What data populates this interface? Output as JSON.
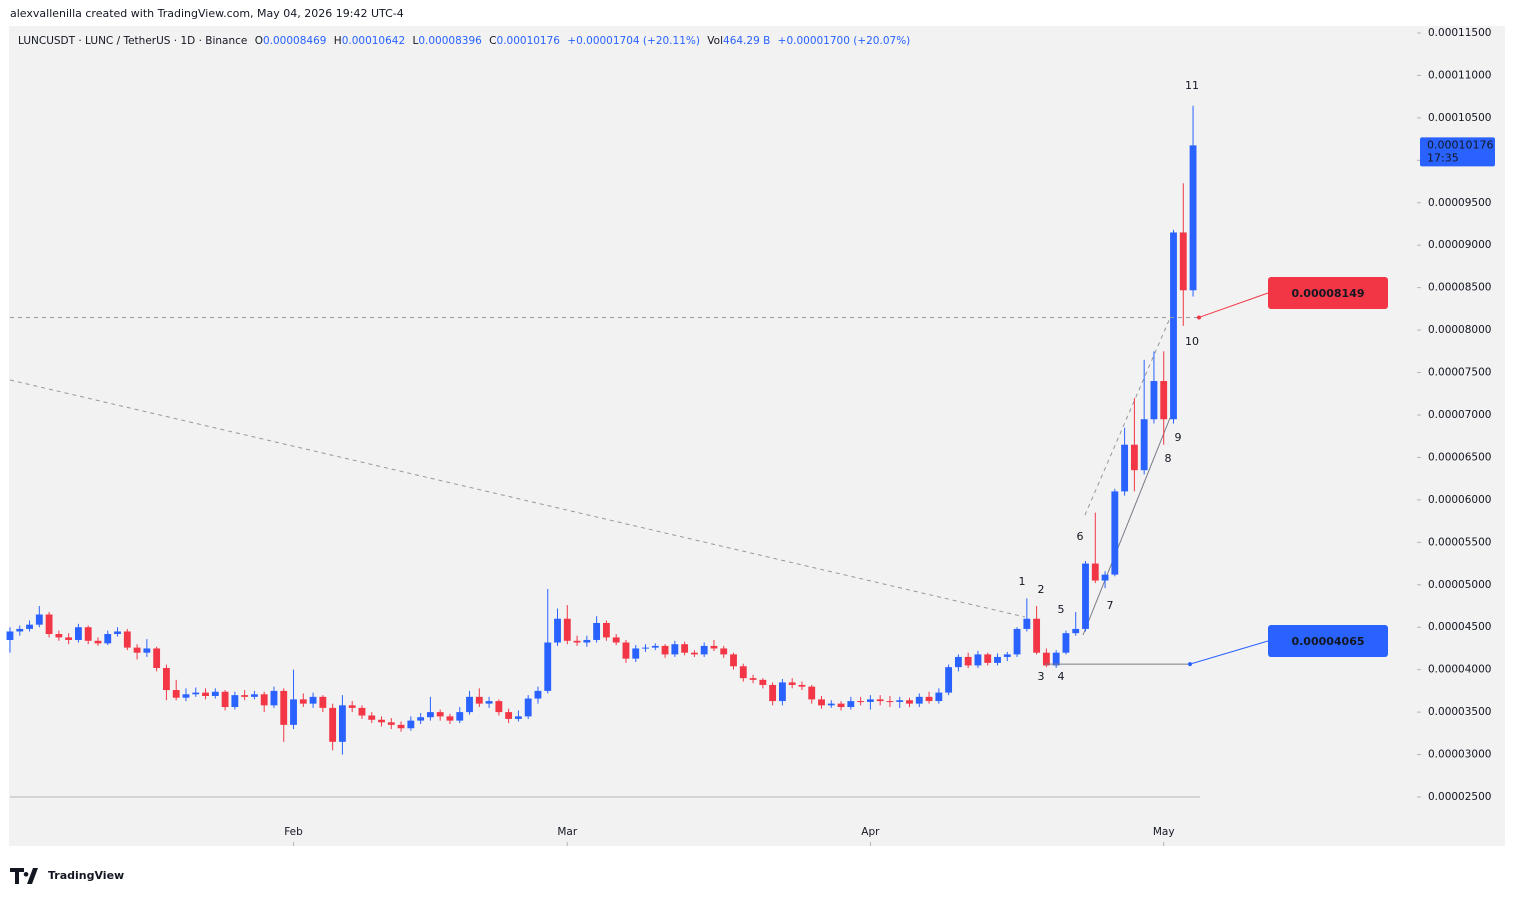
{
  "header": "alexvallenilla created with TradingView.com, May 04, 2026 19:42 UTC-4",
  "legend": {
    "symbol": "LUNCUSDT · LUNC / TetherUS · 1D · Binance",
    "o": "O",
    "open": "0.00008469",
    "h": "H",
    "high": "0.00010642",
    "l": "L",
    "low": "0.00008396",
    "c": "C",
    "close": "0.00010176",
    "change": "+0.00001704 (+20.11%)",
    "vol": "Vol",
    "volume": "464.29 B",
    "vol_change": "+0.00001700 (+20.07%)"
  },
  "branding": "TradingView",
  "chart_data": {
    "type": "candlestick",
    "up_color": "#2962ff",
    "down_color": "#f23645",
    "candles": [
      [
        4.35e-05,
        4.5e-05,
        4.2e-05,
        4.45e-05
      ],
      [
        4.45e-05,
        4.52e-05,
        4.4e-05,
        4.48e-05
      ],
      [
        4.48e-05,
        4.58e-05,
        4.45e-05,
        4.53e-05
      ],
      [
        4.53e-05,
        4.75e-05,
        4.5e-05,
        4.65e-05
      ],
      [
        4.65e-05,
        4.68e-05,
        4.38e-05,
        4.42e-05
      ],
      [
        4.42e-05,
        4.46e-05,
        4.34e-05,
        4.38e-05
      ],
      [
        4.38e-05,
        4.43e-05,
        4.3e-05,
        4.35e-05
      ],
      [
        4.35e-05,
        4.54e-05,
        4.32e-05,
        4.5e-05
      ],
      [
        4.5e-05,
        4.52e-05,
        4.3e-05,
        4.34e-05
      ],
      [
        4.34e-05,
        4.38e-05,
        4.28e-05,
        4.31e-05
      ],
      [
        4.31e-05,
        4.46e-05,
        4.29e-05,
        4.42e-05
      ],
      [
        4.42e-05,
        4.5e-05,
        4.39e-05,
        4.45e-05
      ],
      [
        4.45e-05,
        4.48e-05,
        4.23e-05,
        4.26e-05
      ],
      [
        4.26e-05,
        4.3e-05,
        4.12e-05,
        4.2e-05
      ],
      [
        4.2e-05,
        4.36e-05,
        4.15e-05,
        4.25e-05
      ],
      [
        4.25e-05,
        4.27e-05,
        3.98e-05,
        4.02e-05
      ],
      [
        4.02e-05,
        4.06e-05,
        3.64e-05,
        3.76e-05
      ],
      [
        3.76e-05,
        3.88e-05,
        3.64e-05,
        3.67e-05
      ],
      [
        3.67e-05,
        3.78e-05,
        3.63e-05,
        3.71e-05
      ],
      [
        3.71e-05,
        3.79e-05,
        3.68e-05,
        3.73e-05
      ],
      [
        3.73e-05,
        3.78e-05,
        3.65e-05,
        3.69e-05
      ],
      [
        3.69e-05,
        3.78e-05,
        3.66e-05,
        3.74e-05
      ],
      [
        3.74e-05,
        3.76e-05,
        3.52e-05,
        3.56e-05
      ],
      [
        3.56e-05,
        3.74e-05,
        3.53e-05,
        3.7e-05
      ],
      [
        3.7e-05,
        3.76e-05,
        3.64e-05,
        3.68e-05
      ],
      [
        3.68e-05,
        3.75e-05,
        3.65e-05,
        3.71e-05
      ],
      [
        3.71e-05,
        3.74e-05,
        3.5e-05,
        3.58e-05
      ],
      [
        3.58e-05,
        3.8e-05,
        3.55e-05,
        3.75e-05
      ],
      [
        3.75e-05,
        3.78e-05,
        3.15e-05,
        3.35e-05
      ],
      [
        3.35e-05,
        4e-05,
        3.3e-05,
        3.65e-05
      ],
      [
        3.65e-05,
        3.72e-05,
        3.56e-05,
        3.6e-05
      ],
      [
        3.6e-05,
        3.73e-05,
        3.55e-05,
        3.68e-05
      ],
      [
        3.68e-05,
        3.7e-05,
        3.5e-05,
        3.55e-05
      ],
      [
        3.55e-05,
        3.6e-05,
        3.05e-05,
        3.15e-05
      ],
      [
        3.15e-05,
        3.7e-05,
        3e-05,
        3.58e-05
      ],
      [
        3.58e-05,
        3.63e-05,
        3.5e-05,
        3.55e-05
      ],
      [
        3.55e-05,
        3.58e-05,
        3.42e-05,
        3.46e-05
      ],
      [
        3.46e-05,
        3.5e-05,
        3.37e-05,
        3.41e-05
      ],
      [
        3.41e-05,
        3.45e-05,
        3.33e-05,
        3.38e-05
      ],
      [
        3.38e-05,
        3.43e-05,
        3.3e-05,
        3.35e-05
      ],
      [
        3.35e-05,
        3.39e-05,
        3.27e-05,
        3.31e-05
      ],
      [
        3.31e-05,
        3.45e-05,
        3.28e-05,
        3.4e-05
      ],
      [
        3.4e-05,
        3.49e-05,
        3.36e-05,
        3.44e-05
      ],
      [
        3.44e-05,
        3.68e-05,
        3.4e-05,
        3.5e-05
      ],
      [
        3.5e-05,
        3.53e-05,
        3.4e-05,
        3.45e-05
      ],
      [
        3.45e-05,
        3.48e-05,
        3.36e-05,
        3.4e-05
      ],
      [
        3.4e-05,
        3.56e-05,
        3.37e-05,
        3.5e-05
      ],
      [
        3.5e-05,
        3.75e-05,
        3.47e-05,
        3.68e-05
      ],
      [
        3.68e-05,
        3.78e-05,
        3.56e-05,
        3.6e-05
      ],
      [
        3.6e-05,
        3.68e-05,
        3.55e-05,
        3.63e-05
      ],
      [
        3.63e-05,
        3.65e-05,
        3.46e-05,
        3.5e-05
      ],
      [
        3.5e-05,
        3.54e-05,
        3.37e-05,
        3.42e-05
      ],
      [
        3.42e-05,
        3.52e-05,
        3.39e-05,
        3.45e-05
      ],
      [
        3.45e-05,
        3.7e-05,
        3.42e-05,
        3.66e-05
      ],
      [
        3.66e-05,
        3.8e-05,
        3.6e-05,
        3.75e-05
      ],
      [
        3.75e-05,
        4.95e-05,
        3.72e-05,
        4.32e-05
      ],
      [
        4.32e-05,
        4.72e-05,
        4.28e-05,
        4.6e-05
      ],
      [
        4.6e-05,
        4.76e-05,
        4.3e-05,
        4.34e-05
      ],
      [
        4.34e-05,
        4.4e-05,
        4.28e-05,
        4.32e-05
      ],
      [
        4.32e-05,
        4.4e-05,
        4.27e-05,
        4.35e-05
      ],
      [
        4.35e-05,
        4.63e-05,
        4.32e-05,
        4.55e-05
      ],
      [
        4.55e-05,
        4.58e-05,
        4.34e-05,
        4.38e-05
      ],
      [
        4.38e-05,
        4.42e-05,
        4.29e-05,
        4.32e-05
      ],
      [
        4.32e-05,
        4.35e-05,
        4.08e-05,
        4.13e-05
      ],
      [
        4.13e-05,
        4.29e-05,
        4.09e-05,
        4.25e-05
      ],
      [
        4.25e-05,
        4.3e-05,
        4.21e-05,
        4.26e-05
      ],
      [
        4.26e-05,
        4.31e-05,
        4.23e-05,
        4.28e-05
      ],
      [
        4.28e-05,
        4.3e-05,
        4.14e-05,
        4.18e-05
      ],
      [
        4.18e-05,
        4.34e-05,
        4.15e-05,
        4.3e-05
      ],
      [
        4.3e-05,
        4.33e-05,
        4.17e-05,
        4.2e-05
      ],
      [
        4.2e-05,
        4.23e-05,
        4.15e-05,
        4.18e-05
      ],
      [
        4.18e-05,
        4.32e-05,
        4.15e-05,
        4.28e-05
      ],
      [
        4.28e-05,
        4.35e-05,
        4.22e-05,
        4.25e-05
      ],
      [
        4.25e-05,
        4.28e-05,
        4.14e-05,
        4.18e-05
      ],
      [
        4.18e-05,
        4.2e-05,
        4e-05,
        4.04e-05
      ],
      [
        4.04e-05,
        4.07e-05,
        3.86e-05,
        3.9e-05
      ],
      [
        3.9e-05,
        3.94e-05,
        3.84e-05,
        3.88e-05
      ],
      [
        3.88e-05,
        3.9e-05,
        3.78e-05,
        3.82e-05
      ],
      [
        3.82e-05,
        3.85e-05,
        3.58e-05,
        3.63e-05
      ],
      [
        3.63e-05,
        3.89e-05,
        3.58e-05,
        3.85e-05
      ],
      [
        3.85e-05,
        3.9e-05,
        3.78e-05,
        3.82e-05
      ],
      [
        3.82e-05,
        3.86e-05,
        3.76e-05,
        3.8e-05
      ],
      [
        3.8e-05,
        3.82e-05,
        3.6e-05,
        3.65e-05
      ],
      [
        3.65e-05,
        3.69e-05,
        3.54e-05,
        3.58e-05
      ],
      [
        3.58e-05,
        3.64e-05,
        3.55e-05,
        3.6e-05
      ],
      [
        3.6e-05,
        3.63e-05,
        3.52e-05,
        3.56e-05
      ],
      [
        3.56e-05,
        3.68e-05,
        3.53e-05,
        3.63e-05
      ],
      [
        3.63e-05,
        3.68e-05,
        3.58e-05,
        3.62e-05
      ],
      [
        3.62e-05,
        3.7e-05,
        3.53e-05,
        3.65e-05
      ],
      [
        3.65e-05,
        3.7e-05,
        3.58e-05,
        3.63e-05
      ],
      [
        3.63e-05,
        3.69e-05,
        3.56e-05,
        3.62e-05
      ],
      [
        3.62e-05,
        3.68e-05,
        3.55e-05,
        3.64e-05
      ],
      [
        3.64e-05,
        3.67e-05,
        3.56e-05,
        3.6e-05
      ],
      [
        3.6e-05,
        3.72e-05,
        3.56e-05,
        3.68e-05
      ],
      [
        3.68e-05,
        3.74e-05,
        3.6e-05,
        3.63e-05
      ],
      [
        3.63e-05,
        3.78e-05,
        3.6e-05,
        3.73e-05
      ],
      [
        3.73e-05,
        4.06e-05,
        3.7e-05,
        4.03e-05
      ],
      [
        4.03e-05,
        4.18e-05,
        3.98e-05,
        4.15e-05
      ],
      [
        4.15e-05,
        4.2e-05,
        4.02e-05,
        4.05e-05
      ],
      [
        4.05e-05,
        4.22e-05,
        4.02e-05,
        4.18e-05
      ],
      [
        4.18e-05,
        4.2e-05,
        4.05e-05,
        4.08e-05
      ],
      [
        4.08e-05,
        4.19e-05,
        4.05e-05,
        4.15e-05
      ],
      [
        4.15e-05,
        4.21e-05,
        4.1e-05,
        4.18e-05
      ],
      [
        4.18e-05,
        4.5e-05,
        4.15e-05,
        4.48e-05
      ],
      [
        4.48e-05,
        4.84e-05,
        4.45e-05,
        4.6e-05
      ],
      [
        4.6e-05,
        4.75e-05,
        4.18e-05,
        4.2e-05
      ],
      [
        4.2e-05,
        4.25e-05,
        4.03e-05,
        4.05e-05
      ],
      [
        4.05e-05,
        4.23e-05,
        4.02e-05,
        4.2e-05
      ],
      [
        4.2e-05,
        4.46e-05,
        4.18e-05,
        4.43e-05
      ],
      [
        4.43e-05,
        4.68e-05,
        4.4e-05,
        4.48e-05
      ],
      [
        4.48e-05,
        5.28e-05,
        4.45e-05,
        5.25e-05
      ],
      [
        5.25e-05,
        5.85e-05,
        5.02e-05,
        5.05e-05
      ],
      [
        5.05e-05,
        5.16e-05,
        4.96e-05,
        5.12e-05
      ],
      [
        5.12e-05,
        6.13e-05,
        5.1e-05,
        6.1e-05
      ],
      [
        6.1e-05,
        6.85e-05,
        6.05e-05,
        6.65e-05
      ],
      [
        6.65e-05,
        7.2e-05,
        6.1e-05,
        6.35e-05
      ],
      [
        6.35e-05,
        7.65e-05,
        6.3e-05,
        6.95e-05
      ],
      [
        6.95e-05,
        7.75e-05,
        6.9e-05,
        7.4e-05
      ],
      [
        7.4e-05,
        7.75e-05,
        6.65e-05,
        6.95e-05
      ],
      [
        6.95e-05,
        9.18e-05,
        6.9e-05,
        9.15e-05
      ],
      [
        9.15e-05,
        9.73e-05,
        8.05e-05,
        8.469e-05
      ],
      [
        8.469e-05,
        0.00010642,
        8.396e-05,
        0.00010176
      ]
    ],
    "xlim": [
      -0.1,
      143.7
    ],
    "xticks": [
      {
        "value": 29,
        "label": "Feb"
      },
      {
        "value": 57,
        "label": "Mar"
      },
      {
        "value": 88,
        "label": "Apr"
      },
      {
        "value": 118,
        "label": "May"
      }
    ],
    "ylim": [
      1.923e-05,
      0.00011582
    ],
    "yticks": [
      {
        "value": 2.5e-05,
        "label": "0.00002500"
      },
      {
        "value": 3e-05,
        "label": "0.00003000"
      },
      {
        "value": 3.5e-05,
        "label": "0.00003500"
      },
      {
        "value": 4e-05,
        "label": "0.00004000"
      },
      {
        "value": 4.5e-05,
        "label": "0.00004500"
      },
      {
        "value": 5e-05,
        "label": "0.00005000"
      },
      {
        "value": 5.5e-05,
        "label": "0.00005500"
      },
      {
        "value": 6e-05,
        "label": "0.00006000"
      },
      {
        "value": 6.5e-05,
        "label": "0.00006500"
      },
      {
        "value": 7e-05,
        "label": "0.00007000"
      },
      {
        "value": 7.5e-05,
        "label": "0.00007500"
      },
      {
        "value": 8e-05,
        "label": "0.00008000"
      },
      {
        "value": 8.5e-05,
        "label": "0.00008500"
      },
      {
        "value": 9e-05,
        "label": "0.00009000"
      },
      {
        "value": 9.5e-05,
        "label": "0.00009500"
      },
      {
        "value": 0.0001,
        "label": "0.00010000"
      },
      {
        "value": 0.000105,
        "label": "0.00010500"
      },
      {
        "value": 0.00011,
        "label": "0.00011000"
      },
      {
        "value": 0.000115,
        "label": "0.00011500"
      }
    ],
    "last_price": {
      "value": 0.00010176,
      "label": "0.00010176",
      "countdown": "17:35"
    },
    "levels": [
      {
        "value": 8.149e-05,
        "label": "0.00008149",
        "color": "#f23645",
        "line_style": "dashed"
      },
      {
        "value": 4.065e-05,
        "label": "0.00004065",
        "color": "#2962ff",
        "line_style": "solid"
      }
    ],
    "wave_labels": [
      "1",
      "2",
      "3",
      "4",
      "5",
      "6",
      "7",
      "8",
      "9",
      "10",
      "11"
    ]
  }
}
